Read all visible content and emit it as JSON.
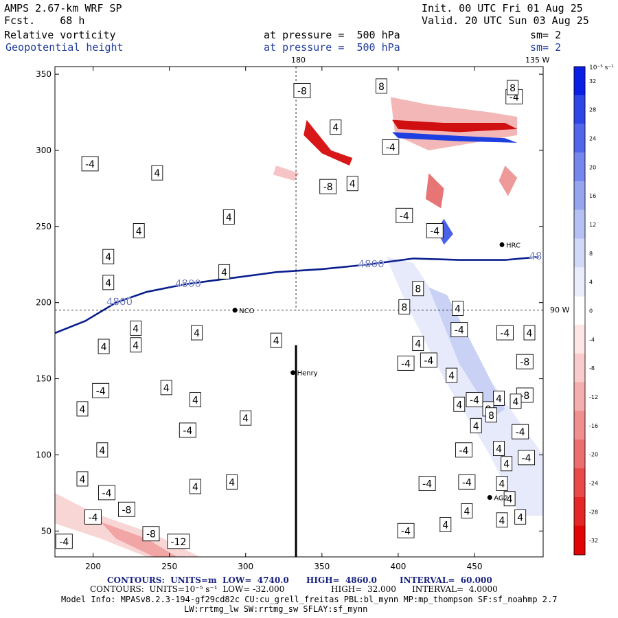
{
  "header": {
    "model": "AMPS 2.67-km WRF SP",
    "fcst": "Fcst.    68 h",
    "init": "Init. 00 UTC Fri 01 Aug 25",
    "valid": "Valid. 20 UTC Sun 03 Aug 25",
    "field1": "Relative vorticity",
    "field2": "Geopotential height",
    "pressure1": "at pressure =  500 hPa",
    "pressure2": "at pressure =  500 hPa",
    "sm1": "sm= 2",
    "sm2": "sm= 2"
  },
  "map_labels": {
    "lon_top": "180",
    "lon_top_right": "135 W",
    "lon_right": "90 W"
  },
  "stations": [
    {
      "name": "NCO",
      "x": 293,
      "y": 195
    },
    {
      "name": "Henry",
      "x": 331,
      "y": 154
    },
    {
      "name": "HRC",
      "x": 468,
      "y": 238
    },
    {
      "name": "AG2",
      "x": 460,
      "y": 72
    }
  ],
  "colorbar": {
    "unit": "10⁻⁵ s⁻¹",
    "ticks": [
      "32",
      "28",
      "24",
      "20",
      "16",
      "12",
      "8",
      "4",
      "0",
      "-4",
      "-8",
      "-12",
      "-16",
      "-20",
      "-24",
      "-28",
      "-32"
    ],
    "colors": [
      "#0a1fe6",
      "#2e45e8",
      "#5266ea",
      "#7586ec",
      "#97a5ef",
      "#b6c1f3",
      "#d2d9f8",
      "#e9edfc",
      "#ffffff",
      "#fce6e6",
      "#f8cccc",
      "#f4aeae",
      "#f08f8f",
      "#ec6e6e",
      "#e84a4a",
      "#e42626",
      "#e10505"
    ]
  },
  "footer": {
    "line1_label1": "CONTOURS:  UNITS=m  LOW=  4740.0",
    "line1_label2": "HIGH=  4860.0",
    "line1_label3": "INTERVAL=  60.000",
    "line2_label1": "CONTOURS:  UNITS=10⁻⁵ s⁻¹  LOW= -32.000",
    "line2_label2": "HIGH=  32.000",
    "line2_label3": "INTERVAL=  4.0000",
    "model_info": "Model Info: MPASv8.2.3-194-gf29cd82c CU:cu_grell_freitas PBL:bl_mynn MP:mp_thompson SF:sf_noahmp 2.7",
    "model_info2": "LW:rrtmg_lw SW:rrtmg_sw SFLAY:sf_mynn"
  },
  "chart_data": {
    "type": "heatmap",
    "title": "Relative vorticity / Geopotential height at 500 hPa",
    "xlim": [
      175,
      495
    ],
    "ylim": [
      33,
      355
    ],
    "xticks": [
      200,
      250,
      300,
      350,
      400,
      450
    ],
    "yticks": [
      50,
      100,
      150,
      200,
      250,
      300,
      350
    ],
    "height_contours": [
      {
        "label": "4800",
        "points": [
          [
            175,
            180
          ],
          [
            195,
            188
          ],
          [
            215,
            200
          ],
          [
            235,
            207
          ],
          [
            260,
            212
          ],
          [
            290,
            216
          ],
          [
            320,
            220
          ],
          [
            350,
            222
          ],
          [
            380,
            225
          ],
          [
            410,
            229
          ],
          [
            440,
            228
          ],
          [
            470,
            228
          ],
          [
            492,
            230
          ]
        ]
      }
    ],
    "vorticity_labels": [
      {
        "v": "-8",
        "x": 337,
        "y": 339
      },
      {
        "v": "8",
        "x": 389,
        "y": 342
      },
      {
        "v": "4",
        "x": 359,
        "y": 315
      },
      {
        "v": "-4",
        "x": 395,
        "y": 302
      },
      {
        "v": "-4",
        "x": 476,
        "y": 335
      },
      {
        "v": "-4",
        "x": 198,
        "y": 291
      },
      {
        "v": "4",
        "x": 242,
        "y": 285
      },
      {
        "v": "-8",
        "x": 354,
        "y": 276
      },
      {
        "v": "4",
        "x": 370,
        "y": 278
      },
      {
        "v": "4",
        "x": 289,
        "y": 256
      },
      {
        "v": "-4",
        "x": 404,
        "y": 257
      },
      {
        "v": "-4",
        "x": 424,
        "y": 247
      },
      {
        "v": "4",
        "x": 230,
        "y": 247
      },
      {
        "v": "4",
        "x": 210,
        "y": 230
      },
      {
        "v": "4",
        "x": 210,
        "y": 213
      },
      {
        "v": "4",
        "x": 286,
        "y": 220
      },
      {
        "v": "8",
        "x": 413,
        "y": 209
      },
      {
        "v": "8",
        "x": 404,
        "y": 197
      },
      {
        "v": "4",
        "x": 439,
        "y": 196
      },
      {
        "v": "-4",
        "x": 440,
        "y": 182
      },
      {
        "v": "-4",
        "x": 470,
        "y": 180
      },
      {
        "v": "4",
        "x": 486,
        "y": 180
      },
      {
        "v": "4",
        "x": 228,
        "y": 183
      },
      {
        "v": "4",
        "x": 268,
        "y": 180
      },
      {
        "v": "4",
        "x": 320,
        "y": 175
      },
      {
        "v": "4",
        "x": 207,
        "y": 171
      },
      {
        "v": "4",
        "x": 228,
        "y": 172
      },
      {
        "v": "4",
        "x": 413,
        "y": 173
      },
      {
        "v": "-4",
        "x": 420,
        "y": 162
      },
      {
        "v": "-4",
        "x": 405,
        "y": 160
      },
      {
        "v": "-8",
        "x": 483,
        "y": 161
      },
      {
        "v": "4",
        "x": 435,
        "y": 152
      },
      {
        "v": "-4",
        "x": 205,
        "y": 142
      },
      {
        "v": "4",
        "x": 248,
        "y": 144
      },
      {
        "v": "4",
        "x": 267,
        "y": 136
      },
      {
        "v": "-4",
        "x": 450,
        "y": 136
      },
      {
        "v": "4",
        "x": 466,
        "y": 137
      },
      {
        "v": "-8",
        "x": 483,
        "y": 139
      },
      {
        "v": "4",
        "x": 440,
        "y": 133
      },
      {
        "v": "8",
        "x": 459,
        "y": 130
      },
      {
        "v": "8",
        "x": 461,
        "y": 126
      },
      {
        "v": "4",
        "x": 477,
        "y": 135
      },
      {
        "v": "4",
        "x": 193,
        "y": 130
      },
      {
        "v": "4",
        "x": 300,
        "y": 124
      },
      {
        "v": "-4",
        "x": 262,
        "y": 116
      },
      {
        "v": "4",
        "x": 451,
        "y": 119
      },
      {
        "v": "-4",
        "x": 480,
        "y": 115
      },
      {
        "v": "4",
        "x": 206,
        "y": 103
      },
      {
        "v": "-4",
        "x": 443,
        "y": 103
      },
      {
        "v": "4",
        "x": 466,
        "y": 104
      },
      {
        "v": "-4",
        "x": 484,
        "y": 98
      },
      {
        "v": "4",
        "x": 471,
        "y": 94
      },
      {
        "v": "4",
        "x": 193,
        "y": 84
      },
      {
        "v": "-4",
        "x": 419,
        "y": 81
      },
      {
        "v": "-4",
        "x": 445,
        "y": 82
      },
      {
        "v": "4",
        "x": 468,
        "y": 81
      },
      {
        "v": "4",
        "x": 267,
        "y": 79
      },
      {
        "v": "4",
        "x": 291,
        "y": 82
      },
      {
        "v": "4",
        "x": 473,
        "y": 71
      },
      {
        "v": "-4",
        "x": 209,
        "y": 75
      },
      {
        "v": "-8",
        "x": 222,
        "y": 64
      },
      {
        "v": "4",
        "x": 445,
        "y": 63
      },
      {
        "v": "-4",
        "x": 200,
        "y": 59
      },
      {
        "v": "4",
        "x": 468,
        "y": 57
      },
      {
        "v": "4",
        "x": 480,
        "y": 59
      },
      {
        "v": "-8",
        "x": 238,
        "y": 48
      },
      {
        "v": "-12",
        "x": 256,
        "y": 43
      },
      {
        "v": "-4",
        "x": 405,
        "y": 50
      },
      {
        "v": "4",
        "x": 431,
        "y": 54
      },
      {
        "v": "-4",
        "x": 181,
        "y": 43
      },
      {
        "v": "8",
        "x": 475,
        "y": 341
      }
    ]
  }
}
